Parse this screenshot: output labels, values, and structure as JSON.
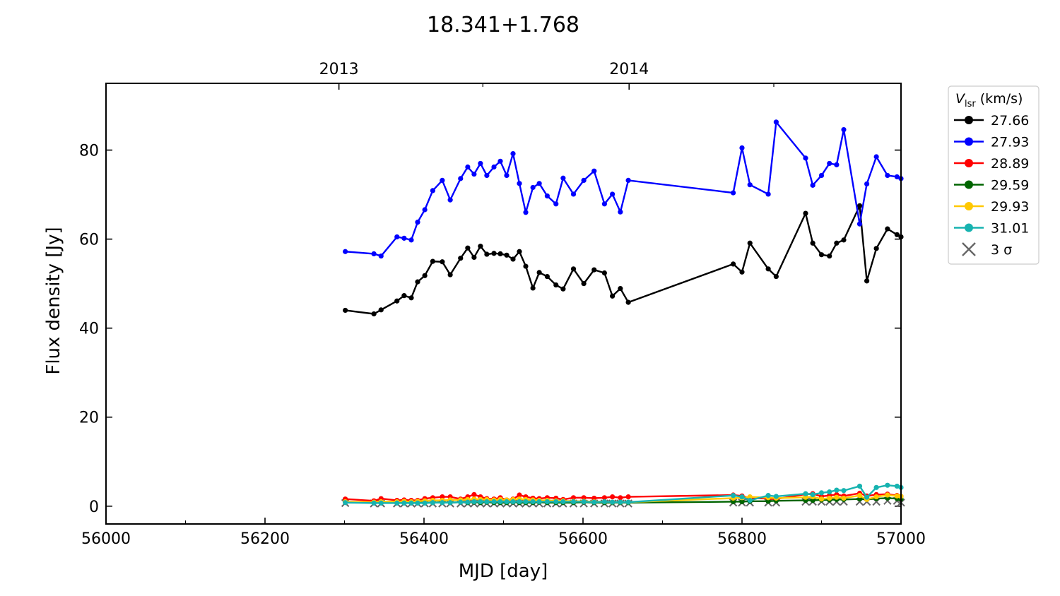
{
  "chart_data": {
    "type": "line",
    "title": "18.341+1.768",
    "xlabel": "MJD [day]",
    "ylabel": "Flux density [Jy]",
    "xlim": [
      56000,
      57000
    ],
    "ylim": [
      -4,
      95
    ],
    "xticks": [
      56000,
      56200,
      56400,
      56600,
      56800,
      57000
    ],
    "xticks_minor": [
      56100,
      56300,
      56500,
      56700,
      56900
    ],
    "yticks": [
      0,
      20,
      40,
      60,
      80
    ],
    "top_axis": {
      "ticks": [
        {
          "label": "2013",
          "mjd": 56293
        },
        {
          "label": "2014",
          "mjd": 56658
        }
      ],
      "minor_ticks": [
        56474,
        56840
      ]
    },
    "legend": {
      "title_main": "V",
      "title_sub": "lsr",
      "title_unit": " (km/s)",
      "placement": "outside-right",
      "entries": [
        {
          "label": "27.66",
          "color": "#000000",
          "marker": "dot"
        },
        {
          "label": "27.93",
          "color": "#0000ff",
          "marker": "dot"
        },
        {
          "label": "28.89",
          "color": "#ff0000",
          "marker": "dot"
        },
        {
          "label": "29.59",
          "color": "#006400",
          "marker": "dot"
        },
        {
          "label": "29.93",
          "color": "#ffc800",
          "marker": "dot"
        },
        {
          "label": "31.01",
          "color": "#17b3b0",
          "marker": "dot"
        },
        {
          "label": "3 σ",
          "color": "#666666",
          "marker": "x"
        }
      ]
    },
    "series": [
      {
        "name": "27.66",
        "color": "#000000",
        "x": [
          56301,
          56337,
          56346,
          56366,
          56375,
          56384,
          56392,
          56401,
          56411,
          56423,
          56433,
          56446,
          56455,
          56463,
          56471,
          56479,
          56488,
          56496,
          56504,
          56512,
          56520,
          56528,
          56537,
          56545,
          56555,
          56566,
          56575,
          56588,
          56601,
          56614,
          56627,
          56637,
          56647,
          56657,
          56789,
          56800,
          56810,
          56833,
          56843,
          56880,
          56889,
          56900,
          56910,
          56919,
          56928,
          56948,
          56957,
          56969,
          56983,
          56995,
          57000
        ],
        "y": [
          44,
          43.2,
          44.1,
          46.1,
          47.3,
          46.8,
          50.4,
          51.8,
          55,
          54.9,
          52,
          55.7,
          58,
          55.9,
          58.4,
          56.6,
          56.8,
          56.7,
          56.4,
          55.5,
          57.2,
          53.9,
          49,
          52.5,
          51.6,
          49.7,
          48.8,
          53.3,
          50,
          53.1,
          52.4,
          47.2,
          48.9,
          45.8,
          54.4,
          52.6,
          59.1,
          53.3,
          51.6,
          65.8,
          59.1,
          56.5,
          56.2,
          59.1,
          59.8,
          67.5,
          50.6,
          57.9,
          62.3,
          61,
          60.5
        ]
      },
      {
        "name": "27.93",
        "color": "#0000ff",
        "x": [
          56301,
          56337,
          56346,
          56366,
          56375,
          56384,
          56392,
          56401,
          56411,
          56423,
          56433,
          56446,
          56455,
          56463,
          56471,
          56479,
          56488,
          56496,
          56504,
          56512,
          56520,
          56528,
          56537,
          56545,
          56555,
          56566,
          56575,
          56588,
          56601,
          56614,
          56627,
          56637,
          56647,
          56657,
          56789,
          56800,
          56810,
          56833,
          56843,
          56880,
          56889,
          56900,
          56910,
          56919,
          56928,
          56948,
          56957,
          56969,
          56983,
          56995,
          57000
        ],
        "y": [
          57.2,
          56.7,
          56.2,
          60.5,
          60.2,
          59.8,
          63.8,
          66.6,
          70.9,
          73.2,
          68.8,
          73.6,
          76.2,
          74.6,
          77,
          74.3,
          76.2,
          77.5,
          74.3,
          79.2,
          72.5,
          66,
          71.6,
          72.5,
          69.7,
          67.9,
          73.7,
          70.1,
          73.2,
          75.3,
          67.9,
          70.1,
          66.1,
          73.2,
          70.4,
          80.5,
          72.2,
          70.1,
          86.3,
          78.2,
          72.1,
          74.3,
          77,
          76.7,
          84.6,
          63.4,
          72.4,
          78.5,
          74.3,
          74,
          73.6
        ]
      },
      {
        "name": "28.89",
        "color": "#ff0000",
        "x": [
          56301,
          56337,
          56346,
          56366,
          56375,
          56384,
          56392,
          56401,
          56411,
          56423,
          56433,
          56446,
          56455,
          56463,
          56471,
          56479,
          56488,
          56496,
          56504,
          56512,
          56520,
          56528,
          56537,
          56545,
          56555,
          56566,
          56575,
          56588,
          56601,
          56614,
          56627,
          56637,
          56647,
          56657,
          56789,
          56800,
          56810,
          56833,
          56843,
          56880,
          56889,
          56900,
          56910,
          56919,
          56928,
          56948,
          56957,
          56969,
          56983,
          56995,
          57000
        ],
        "y": [
          1.6,
          1.2,
          1.7,
          1.3,
          1.4,
          1.3,
          1.3,
          1.7,
          1.9,
          2.1,
          2.1,
          1.6,
          2.1,
          2.6,
          2.1,
          1.7,
          1.6,
          1.9,
          1.4,
          1.6,
          2.5,
          2.1,
          1.8,
          1.7,
          1.9,
          1.8,
          1.5,
          1.9,
          1.9,
          1.8,
          1.9,
          2.1,
          1.9,
          2.1,
          2.5,
          2.3,
          1.8,
          1.7,
          1.6,
          2.7,
          2.8,
          2.2,
          2.4,
          2.6,
          2.3,
          2.9,
          2.3,
          2.6,
          2.7,
          2.4,
          2.2
        ]
      },
      {
        "name": "29.59",
        "color": "#006400",
        "x": [
          56301,
          56337,
          56346,
          56366,
          56375,
          56384,
          56392,
          56401,
          56411,
          56423,
          56433,
          56446,
          56455,
          56463,
          56471,
          56479,
          56488,
          56496,
          56504,
          56512,
          56520,
          56528,
          56537,
          56545,
          56555,
          56566,
          56575,
          56588,
          56601,
          56614,
          56627,
          56637,
          56647,
          56657,
          56789,
          56800,
          56810,
          56833,
          56843,
          56880,
          56889,
          56900,
          56910,
          56919,
          56928,
          56948,
          56957,
          56969,
          56983,
          56995,
          57000
        ],
        "y": [
          0.9,
          0.8,
          0.8,
          0.8,
          0.8,
          0.8,
          0.8,
          0.8,
          0.8,
          0.9,
          0.8,
          0.9,
          0.8,
          0.9,
          0.8,
          0.9,
          0.8,
          0.8,
          0.8,
          0.9,
          0.8,
          0.8,
          0.8,
          0.9,
          0.8,
          0.8,
          0.8,
          0.8,
          0.9,
          0.8,
          0.8,
          0.8,
          0.8,
          0.8,
          1,
          1,
          1.1,
          1.1,
          1.2,
          1.3,
          1.3,
          1.4,
          1.4,
          1.5,
          1.5,
          1.6,
          1.5,
          1.7,
          1.8,
          1.7,
          1.6
        ]
      },
      {
        "name": "29.93",
        "color": "#ffc800",
        "x": [
          56301,
          56337,
          56346,
          56366,
          56375,
          56384,
          56392,
          56401,
          56411,
          56423,
          56433,
          56446,
          56455,
          56463,
          56471,
          56479,
          56488,
          56496,
          56504,
          56512,
          56520,
          56528,
          56537,
          56545,
          56555,
          56566,
          56575,
          56588,
          56601,
          56614,
          56627,
          56637,
          56647,
          56657,
          56789,
          56800,
          56810,
          56833,
          56843,
          56880,
          56889,
          56900,
          56910,
          56919,
          56928,
          56948,
          56957,
          56969,
          56983,
          56995,
          57000
        ],
        "y": [
          1,
          0.9,
          1,
          1,
          1.1,
          1,
          1.1,
          1.2,
          1.3,
          1.3,
          1.4,
          1.4,
          1.5,
          1.6,
          1.5,
          1.5,
          1.4,
          1.5,
          1.4,
          1.5,
          1.6,
          1.5,
          1.4,
          1.3,
          1.3,
          1.2,
          1.2,
          1.1,
          1.1,
          1,
          1,
          0.9,
          0.9,
          0.9,
          1.8,
          1.9,
          2.1,
          1.9,
          1.8,
          2,
          2.1,
          1.6,
          1.8,
          2,
          1.8,
          2.4,
          1.5,
          2.1,
          2.5,
          2.3,
          2.2
        ]
      },
      {
        "name": "31.01",
        "color": "#17b3b0",
        "x": [
          56301,
          56337,
          56346,
          56366,
          56375,
          56384,
          56392,
          56401,
          56411,
          56423,
          56433,
          56446,
          56455,
          56463,
          56471,
          56479,
          56488,
          56496,
          56504,
          56512,
          56520,
          56528,
          56537,
          56545,
          56555,
          56566,
          56575,
          56588,
          56601,
          56614,
          56627,
          56637,
          56647,
          56657,
          56789,
          56800,
          56810,
          56833,
          56843,
          56880,
          56889,
          56900,
          56910,
          56919,
          56928,
          56948,
          56957,
          56969,
          56983,
          56995,
          57000
        ],
        "y": [
          0.8,
          0.7,
          0.7,
          0.7,
          0.7,
          0.7,
          0.7,
          0.7,
          0.8,
          0.8,
          0.8,
          0.9,
          0.9,
          1,
          1,
          1,
          1,
          1,
          1,
          1,
          1,
          1,
          1,
          1,
          1,
          1,
          1,
          1,
          1,
          0.9,
          1,
          0.9,
          0.9,
          0.9,
          2.4,
          2.1,
          1.3,
          2.4,
          2.2,
          2.8,
          2.6,
          3,
          3.2,
          3.6,
          3.5,
          4.5,
          2,
          4.2,
          4.7,
          4.5,
          4.2
        ]
      }
    ],
    "three_sigma": {
      "name": "3 σ",
      "color": "#666666",
      "x": [
        56301,
        56337,
        56346,
        56366,
        56375,
        56384,
        56392,
        56401,
        56411,
        56423,
        56433,
        56446,
        56455,
        56463,
        56471,
        56479,
        56488,
        56496,
        56504,
        56512,
        56520,
        56528,
        56537,
        56545,
        56555,
        56566,
        56575,
        56588,
        56601,
        56614,
        56627,
        56637,
        56647,
        56657,
        56789,
        56800,
        56810,
        56833,
        56843,
        56880,
        56889,
        56900,
        56910,
        56919,
        56928,
        56948,
        56957,
        56969,
        56983,
        56995,
        57000
      ],
      "y": [
        0.7,
        0.6,
        0.6,
        0.6,
        0.6,
        0.6,
        0.6,
        0.6,
        0.6,
        0.6,
        0.6,
        0.6,
        0.6,
        0.6,
        0.6,
        0.6,
        0.6,
        0.6,
        0.6,
        0.6,
        0.6,
        0.6,
        0.6,
        0.6,
        0.6,
        0.6,
        0.6,
        0.6,
        0.6,
        0.6,
        0.6,
        0.6,
        0.6,
        0.6,
        0.8,
        0.8,
        0.8,
        0.8,
        0.8,
        1,
        1,
        1,
        1,
        1,
        1,
        1,
        1,
        1,
        1.2,
        1.2,
        0.8
      ]
    }
  }
}
